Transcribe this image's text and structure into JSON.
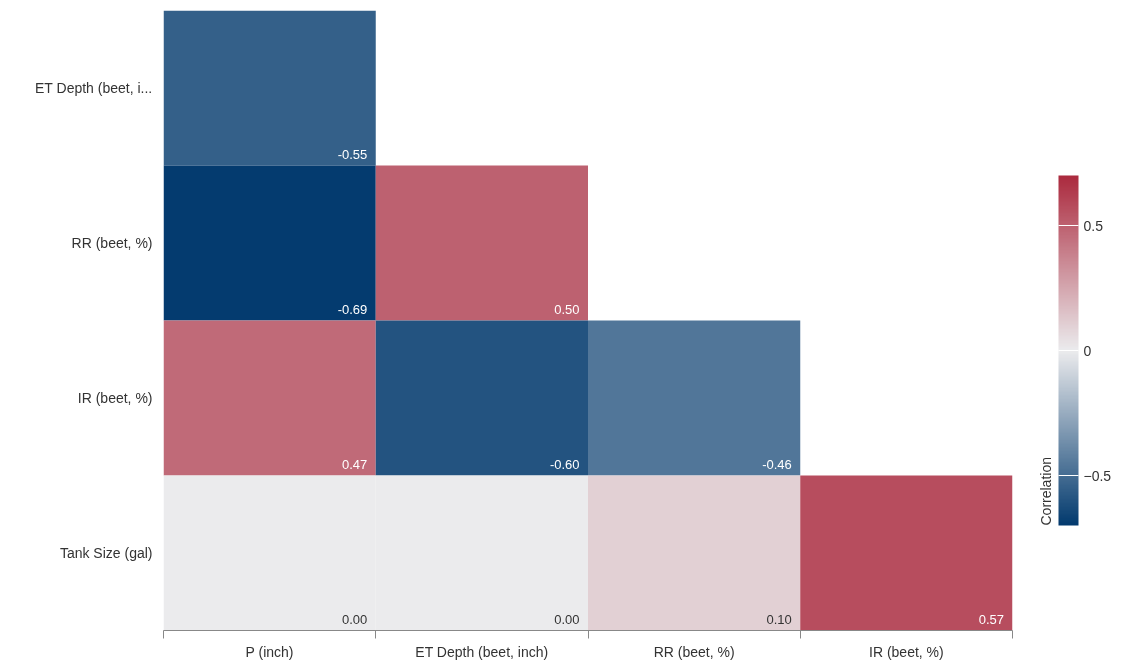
{
  "chart_data": {
    "type": "heatmap",
    "categories": [
      "P (inch)",
      "ET Depth (beet, inch)",
      "RR (beet, %)",
      "IR (beet, %)"
    ],
    "y_categories": [
      "ET Depth (beet, i...",
      "RR (beet, %)",
      "IR (beet, %)",
      "Tank Size (gal)"
    ],
    "cells": [
      [
        -0.55,
        null,
        null,
        null
      ],
      [
        -0.69,
        0.5,
        null,
        null
      ],
      [
        0.47,
        -0.6,
        -0.46,
        null
      ],
      [
        0.0,
        0.0,
        0.1,
        0.57
      ]
    ],
    "cell_labels": [
      [
        "-0.55",
        null,
        null,
        null
      ],
      [
        "-0.69",
        "0.50",
        null,
        null
      ],
      [
        "0.47",
        "-0.60",
        "-0.46",
        null
      ],
      [
        "0.00",
        "0.00",
        "0.10",
        "0.57"
      ]
    ],
    "clabel": "Correlation",
    "clim": [
      -0.7,
      0.7
    ],
    "cticks": [
      -0.5,
      0,
      0.5
    ]
  }
}
